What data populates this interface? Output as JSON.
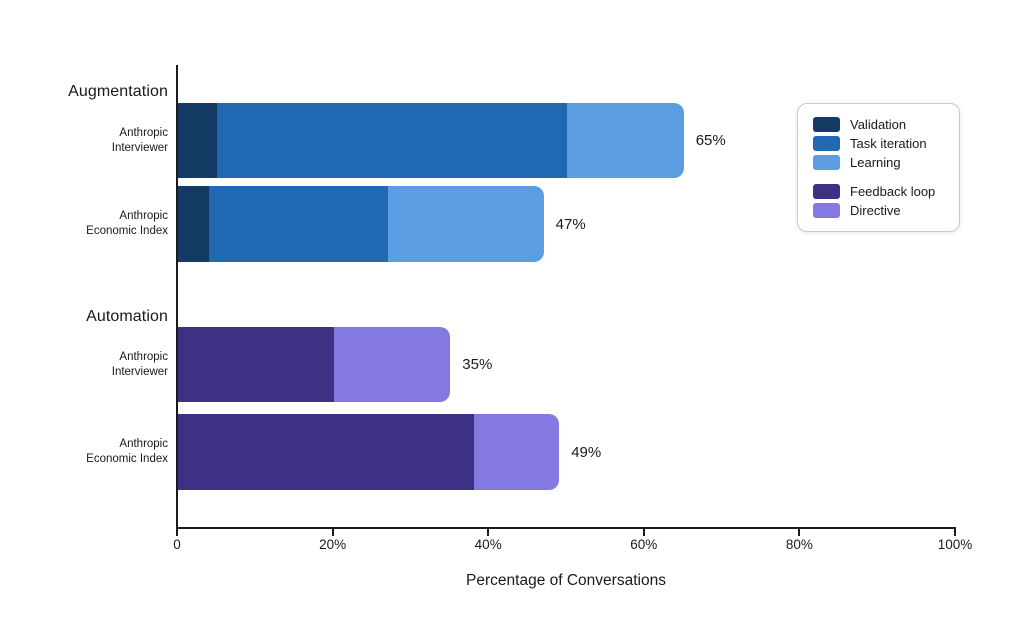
{
  "chart_data": {
    "type": "bar",
    "orientation": "horizontal",
    "stacked": true,
    "title": "",
    "xlabel": "Percentage of Conversations",
    "ylabel": "",
    "xlim": [
      0,
      100
    ],
    "x_ticks": [
      {
        "value": 0,
        "label": "0"
      },
      {
        "value": 20,
        "label": "20%"
      },
      {
        "value": 40,
        "label": "40%"
      },
      {
        "value": 60,
        "label": "60%"
      },
      {
        "value": 80,
        "label": "80%"
      },
      {
        "value": 100,
        "label": "100%"
      }
    ],
    "legend": {
      "position": "right",
      "entries": [
        {
          "label": "Validation",
          "color": "#123a63",
          "group": "augmentation"
        },
        {
          "label": "Task iteration",
          "color": "#2069b2",
          "group": "augmentation"
        },
        {
          "label": "Learning",
          "color": "#5c9de2",
          "group": "augmentation"
        },
        {
          "label": "Feedback loop",
          "color": "#3d3185",
          "group": "automation"
        },
        {
          "label": "Directive",
          "color": "#8379e0",
          "group": "automation"
        }
      ]
    },
    "groups": [
      {
        "label": "Augmentation",
        "rows": [
          {
            "label_lines": [
              "Anthropic",
              "Interviewer"
            ],
            "segments": [
              {
                "name": "Validation",
                "value": 5
              },
              {
                "name": "Task iteration",
                "value": 45
              },
              {
                "name": "Learning",
                "value": 15
              }
            ],
            "total": 65,
            "total_label": "65%"
          },
          {
            "label_lines": [
              "Anthropic",
              "Economic Index"
            ],
            "segments": [
              {
                "name": "Validation",
                "value": 4
              },
              {
                "name": "Task iteration",
                "value": 23
              },
              {
                "name": "Learning",
                "value": 20
              }
            ],
            "total": 47,
            "total_label": "47%"
          }
        ]
      },
      {
        "label": "Automation",
        "rows": [
          {
            "label_lines": [
              "Anthropic",
              "Interviewer"
            ],
            "segments": [
              {
                "name": "Feedback loop",
                "value": 20
              },
              {
                "name": "Directive",
                "value": 15
              }
            ],
            "total": 35,
            "total_label": "35%"
          },
          {
            "label_lines": [
              "Anthropic",
              "Economic Index"
            ],
            "segments": [
              {
                "name": "Feedback loop",
                "value": 38
              },
              {
                "name": "Directive",
                "value": 11
              }
            ],
            "total": 49,
            "total_label": "49%"
          }
        ]
      }
    ]
  },
  "colors": {
    "axis": "#1a1a1a",
    "text": "#1a1a1a",
    "background": "#ffffff",
    "legend_border": "#c9c9c9"
  }
}
